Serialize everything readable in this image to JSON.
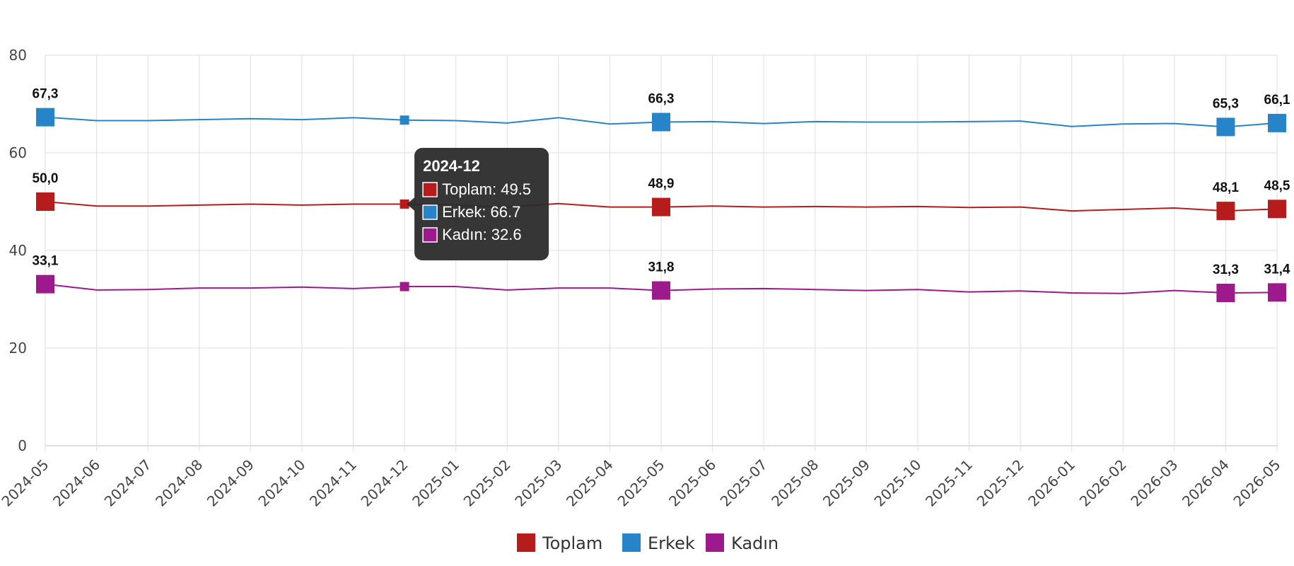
{
  "chart_data": {
    "type": "line",
    "categories": [
      "2024-05",
      "2024-06",
      "2024-07",
      "2024-08",
      "2024-09",
      "2024-10",
      "2024-11",
      "2024-12",
      "2025-01",
      "2025-02",
      "2025-03",
      "2025-04",
      "2025-05",
      "2025-06",
      "2025-07",
      "2025-08",
      "2025-09",
      "2025-10",
      "2025-11",
      "2025-12",
      "2026-01",
      "2026-02",
      "2026-03",
      "2026-04",
      "2026-05"
    ],
    "ylim": [
      0,
      80
    ],
    "yticks": [
      0,
      20,
      40,
      60,
      80
    ],
    "grid": true,
    "legend_position": "bottom",
    "series": [
      {
        "name": "Toplam",
        "color": "#b71c1c",
        "values": [
          50.0,
          49.1,
          49.1,
          49.3,
          49.5,
          49.3,
          49.5,
          49.5,
          49.3,
          48.9,
          49.6,
          48.9,
          48.9,
          49.1,
          48.9,
          49.0,
          48.9,
          49.0,
          48.8,
          48.9,
          48.1,
          48.4,
          48.7,
          48.1,
          48.5
        ]
      },
      {
        "name": "Erkek",
        "color": "#2784c8",
        "values": [
          67.3,
          66.6,
          66.6,
          66.8,
          67.0,
          66.8,
          67.2,
          66.7,
          66.6,
          66.1,
          67.2,
          65.9,
          66.3,
          66.4,
          66.0,
          66.4,
          66.3,
          66.3,
          66.4,
          66.5,
          65.4,
          65.9,
          66.0,
          65.3,
          66.1
        ]
      },
      {
        "name": "Kadın",
        "color": "#9c1a8c",
        "values": [
          33.1,
          31.9,
          32.0,
          32.3,
          32.3,
          32.5,
          32.2,
          32.6,
          32.6,
          31.9,
          32.3,
          32.3,
          31.8,
          32.1,
          32.2,
          32.0,
          31.8,
          32.0,
          31.5,
          31.7,
          31.3,
          31.2,
          31.8,
          31.3,
          31.4
        ]
      }
    ],
    "labeled_indices": [
      0,
      12,
      23,
      24
    ],
    "data_labels": {
      "Toplam": [
        "50,0",
        "48,9",
        "48,1",
        "48,5"
      ],
      "Erkek": [
        "67,3",
        "66,3",
        "65,3",
        "66,1"
      ],
      "Kadın": [
        "33,1",
        "31,8",
        "31,3",
        "31,4"
      ]
    },
    "tooltip": {
      "index": 7,
      "title": "2024-12",
      "lines": [
        "Toplam: 49.5",
        "Erkek: 66.7",
        "Kadın: 32.6"
      ]
    }
  }
}
